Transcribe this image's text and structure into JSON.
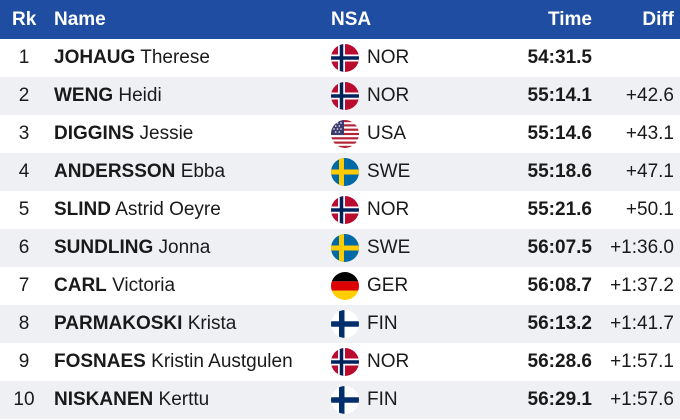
{
  "header": {
    "rank": "Rk",
    "name": "Name",
    "nsa": "NSA",
    "time": "Time",
    "diff": "Diff"
  },
  "colors": {
    "header_bg": "#1E4DA1",
    "row_alt_bg": "#EEF0F4"
  },
  "rows": [
    {
      "rank": "1",
      "last": "JOHAUG",
      "first": "Therese",
      "nsa": "NOR",
      "flag": "norway-flag-icon",
      "time": "54:31.5",
      "diff": ""
    },
    {
      "rank": "2",
      "last": "WENG",
      "first": "Heidi",
      "nsa": "NOR",
      "flag": "norway-flag-icon",
      "time": "55:14.1",
      "diff": "+42.6"
    },
    {
      "rank": "3",
      "last": "DIGGINS",
      "first": "Jessie",
      "nsa": "USA",
      "flag": "usa-flag-icon",
      "time": "55:14.6",
      "diff": "+43.1"
    },
    {
      "rank": "4",
      "last": "ANDERSSON",
      "first": "Ebba",
      "nsa": "SWE",
      "flag": "sweden-flag-icon",
      "time": "55:18.6",
      "diff": "+47.1"
    },
    {
      "rank": "5",
      "last": "SLIND",
      "first": "Astrid Oeyre",
      "nsa": "NOR",
      "flag": "norway-flag-icon",
      "time": "55:21.6",
      "diff": "+50.1"
    },
    {
      "rank": "6",
      "last": "SUNDLING",
      "first": "Jonna",
      "nsa": "SWE",
      "flag": "sweden-flag-icon",
      "time": "56:07.5",
      "diff": "+1:36.0"
    },
    {
      "rank": "7",
      "last": "CARL",
      "first": "Victoria",
      "nsa": "GER",
      "flag": "germany-flag-icon",
      "time": "56:08.7",
      "diff": "+1:37.2"
    },
    {
      "rank": "8",
      "last": "PARMAKOSKI",
      "first": "Krista",
      "nsa": "FIN",
      "flag": "finland-flag-icon",
      "time": "56:13.2",
      "diff": "+1:41.7"
    },
    {
      "rank": "9",
      "last": "FOSNAES",
      "first": "Kristin Austgulen",
      "nsa": "NOR",
      "flag": "norway-flag-icon",
      "time": "56:28.6",
      "diff": "+1:57.1"
    },
    {
      "rank": "10",
      "last": "NISKANEN",
      "first": "Kerttu",
      "nsa": "FIN",
      "flag": "finland-flag-icon",
      "time": "56:29.1",
      "diff": "+1:57.6"
    }
  ]
}
